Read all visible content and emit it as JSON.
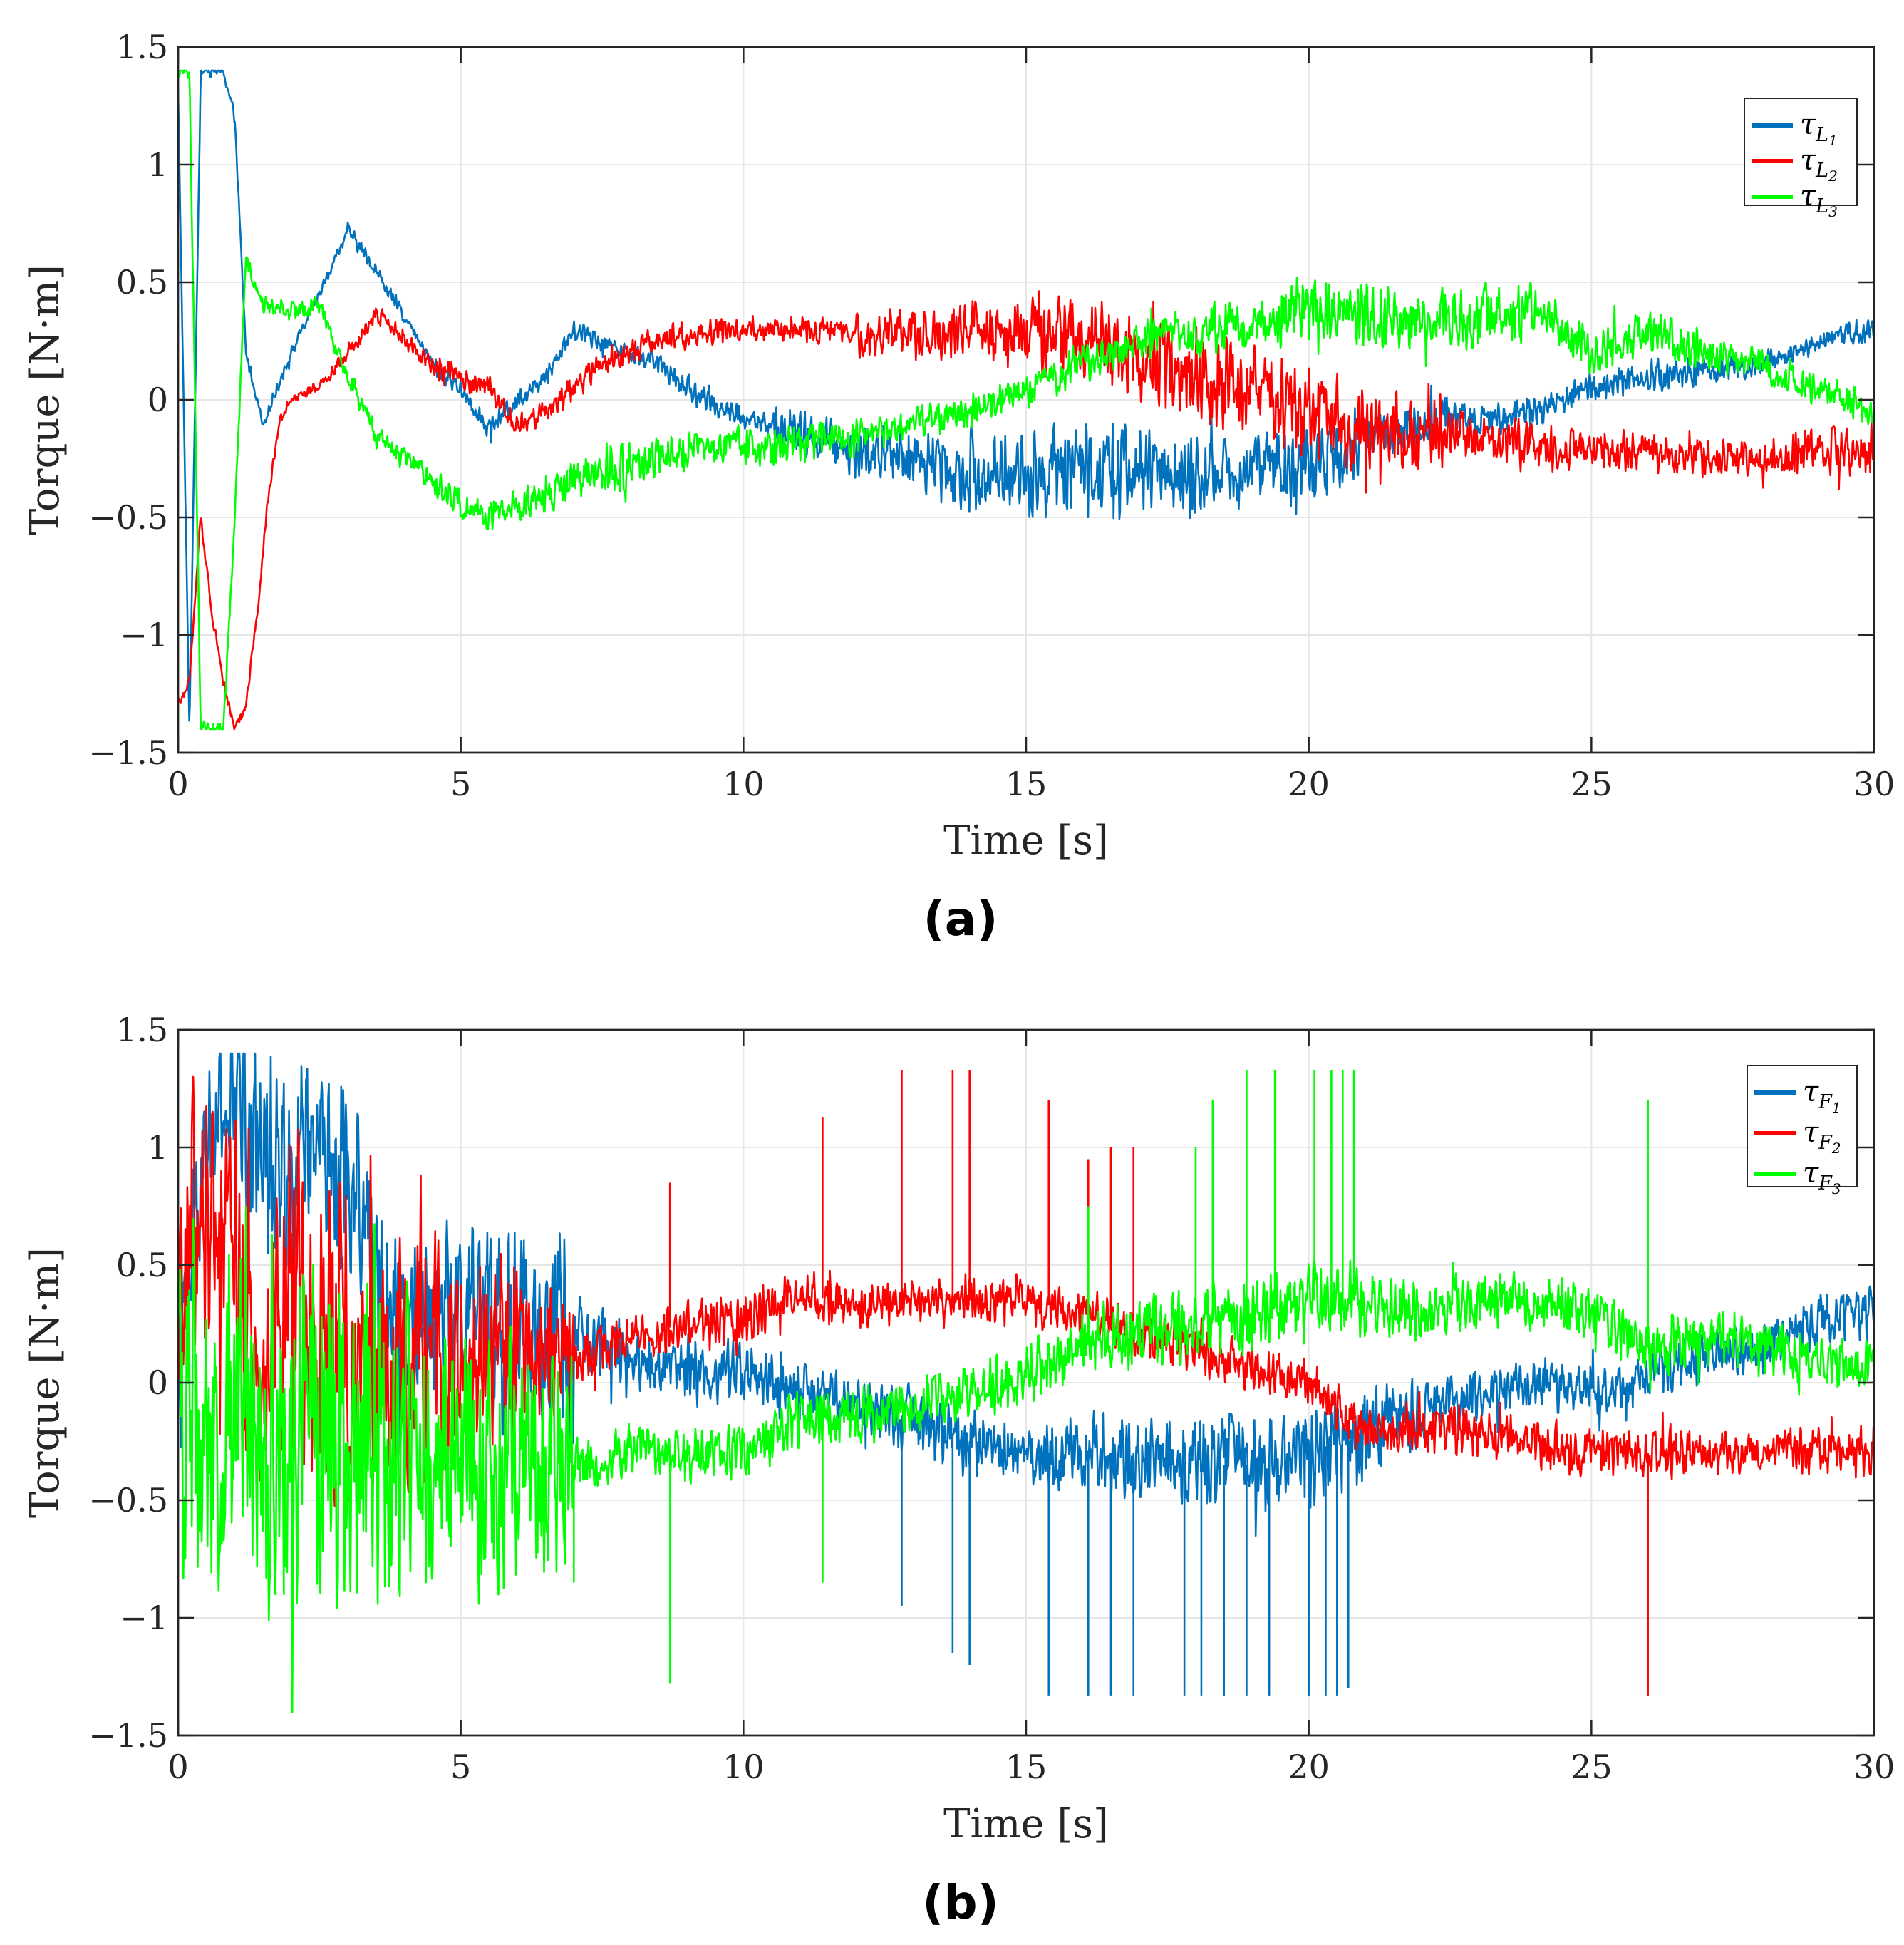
{
  "chart_data": [
    {
      "type": "line",
      "panel_label": "(a)",
      "xlabel": "Time [s]",
      "ylabel": "Torque [N·m]",
      "xlim": [
        0,
        30
      ],
      "ylim": [
        -1.5,
        1.5
      ],
      "x_ticks": [
        0,
        5,
        10,
        15,
        20,
        25,
        30
      ],
      "x_tick_labels": [
        "0",
        "5",
        "10",
        "15",
        "20",
        "25",
        "30"
      ],
      "y_ticks": [
        1.5,
        1,
        0.5,
        0,
        -0.5,
        -1,
        -1.5
      ],
      "y_tick_labels": [
        "1.5",
        "1",
        "0.5",
        "0",
        "−0.5",
        "−1",
        "−1.5"
      ],
      "grid": true,
      "legend_position": "top-right",
      "series": [
        {
          "name": "τL1",
          "symbol": "τ",
          "sub": "L",
          "subsub": "1",
          "color": "#0072BD",
          "noise": [
            0.03,
            0.03,
            0.04,
            0.05,
            0.05,
            0.05,
            0.06,
            0.12,
            0.15,
            0.2,
            0.22,
            0.22,
            0.18,
            0.18,
            0.12,
            0.08,
            0.08,
            0.08,
            0.06,
            0.06
          ],
          "x": [
            0,
            0.2,
            0.4,
            0.6,
            0.8,
            1.0,
            1.2,
            1.5,
            2.0,
            2.5,
            3.0,
            3.5,
            4.0,
            4.5,
            5.0,
            5.5,
            6.0,
            6.5,
            7.0,
            7.5,
            8.0,
            8.5,
            9.0,
            9.5,
            10.0,
            11.0,
            12.0,
            13.0,
            14.0,
            15.0,
            16.0,
            17.0,
            18.0,
            19.0,
            20.0,
            21.0,
            22.0,
            23.0,
            24.0,
            25.0,
            26.0,
            27.0,
            28.0,
            29.0,
            30.0
          ],
          "y": [
            1.3,
            -1.4,
            1.4,
            1.4,
            1.4,
            1.2,
            0.2,
            -0.1,
            0.2,
            0.45,
            0.72,
            0.55,
            0.35,
            0.15,
            0.05,
            -0.12,
            0.0,
            0.1,
            0.3,
            0.25,
            0.2,
            0.15,
            0.05,
            -0.02,
            -0.08,
            -0.15,
            -0.22,
            -0.25,
            -0.3,
            -0.32,
            -0.28,
            -0.3,
            -0.32,
            -0.3,
            -0.28,
            -0.18,
            -0.1,
            -0.08,
            -0.05,
            0.05,
            0.1,
            0.12,
            0.15,
            0.25,
            0.3
          ]
        },
        {
          "name": "τL2",
          "symbol": "τ",
          "sub": "L",
          "subsub": "2",
          "color": "#FF0000",
          "noise": [
            0.03,
            0.03,
            0.05,
            0.06,
            0.06,
            0.07,
            0.06,
            0.06,
            0.12,
            0.16,
            0.2,
            0.22,
            0.22,
            0.22,
            0.2,
            0.12,
            0.1,
            0.1,
            0.1,
            0.12
          ],
          "x": [
            0,
            0.2,
            0.4,
            0.6,
            0.8,
            1.0,
            1.2,
            1.4,
            1.6,
            1.8,
            2.0,
            2.5,
            3.0,
            3.5,
            4.0,
            4.5,
            5.0,
            5.5,
            6.0,
            6.5,
            7.0,
            7.5,
            8.0,
            8.5,
            9.0,
            10.0,
            11.0,
            12.0,
            13.0,
            14.0,
            15.0,
            16.0,
            17.0,
            18.0,
            19.0,
            20.0,
            21.0,
            22.0,
            23.0,
            24.0,
            25.0,
            26.0,
            27.0,
            28.0,
            29.0,
            30.0
          ],
          "y": [
            -1.3,
            -1.2,
            -0.5,
            -0.9,
            -1.2,
            -1.4,
            -1.3,
            -0.9,
            -0.4,
            -0.1,
            0.0,
            0.05,
            0.2,
            0.38,
            0.25,
            0.15,
            0.1,
            0.05,
            -0.12,
            -0.05,
            0.05,
            0.15,
            0.2,
            0.25,
            0.28,
            0.3,
            0.3,
            0.28,
            0.28,
            0.3,
            0.28,
            0.25,
            0.2,
            0.1,
            0.05,
            -0.05,
            -0.15,
            -0.15,
            -0.15,
            -0.2,
            -0.22,
            -0.22,
            -0.25,
            -0.25,
            -0.22,
            -0.2
          ]
        },
        {
          "name": "τL3",
          "symbol": "τ",
          "sub": "L",
          "subsub": "3",
          "color": "#00FF00",
          "noise": [
            0.04,
            0.05,
            0.06,
            0.08,
            0.1,
            0.12,
            0.1,
            0.1,
            0.08,
            0.08,
            0.1,
            0.1,
            0.12,
            0.15,
            0.16,
            0.16,
            0.12,
            0.1,
            0.08,
            0.08
          ],
          "x": [
            0,
            0.2,
            0.4,
            0.6,
            0.8,
            1.0,
            1.2,
            1.5,
            2.0,
            2.5,
            3.0,
            3.5,
            4.0,
            4.5,
            5.0,
            5.5,
            6.0,
            6.5,
            7.0,
            7.5,
            8.0,
            8.5,
            9.0,
            10.0,
            11.0,
            12.0,
            13.0,
            14.0,
            15.0,
            16.0,
            17.0,
            18.0,
            19.0,
            20.0,
            21.0,
            22.0,
            23.0,
            24.0,
            25.0,
            26.0,
            27.0,
            28.0,
            29.0,
            30.0
          ],
          "y": [
            1.4,
            1.4,
            -1.4,
            -1.4,
            -1.4,
            -0.5,
            0.6,
            0.4,
            0.38,
            0.4,
            0.1,
            -0.15,
            -0.25,
            -0.35,
            -0.45,
            -0.5,
            -0.45,
            -0.4,
            -0.35,
            -0.3,
            -0.28,
            -0.25,
            -0.22,
            -0.2,
            -0.18,
            -0.15,
            -0.1,
            -0.05,
            0.05,
            0.15,
            0.25,
            0.3,
            0.32,
            0.4,
            0.35,
            0.35,
            0.35,
            0.38,
            0.2,
            0.3,
            0.2,
            0.15,
            0.05,
            -0.05
          ]
        }
      ]
    },
    {
      "type": "line",
      "panel_label": "(b)",
      "xlabel": "Time [s]",
      "ylabel": "Torque [N·m]",
      "xlim": [
        0,
        30
      ],
      "ylim": [
        -1.5,
        1.5
      ],
      "x_ticks": [
        0,
        5,
        10,
        15,
        20,
        25,
        30
      ],
      "x_tick_labels": [
        "0",
        "5",
        "10",
        "15",
        "20",
        "25",
        "30"
      ],
      "y_ticks": [
        1.5,
        1,
        0.5,
        0,
        -0.5,
        -1,
        -1.5
      ],
      "y_tick_labels": [
        "1.5",
        "1",
        "0.5",
        "0",
        "−0.5",
        "−1",
        "−1.5"
      ],
      "grid": true,
      "legend_position": "top-right",
      "series": [
        {
          "name": "τF1",
          "symbol": "τ",
          "sub": "F",
          "subsub": "1",
          "color": "#0072BD",
          "noise": [
            0.4,
            0.5,
            0.5,
            0.45,
            0.45,
            0.45,
            0.5,
            0.18,
            0.16,
            0.16,
            0.15,
            0.15,
            0.15,
            0.16,
            0.16,
            0.18,
            0.2,
            0.22,
            0.24,
            0.25,
            0.25,
            0.22,
            0.15,
            0.12,
            0.12,
            0.12,
            0.12,
            0.12,
            0.12,
            0.14
          ],
          "spikes": [
            [
              12.8,
              -0.95
            ],
            [
              13.7,
              -1.15
            ],
            [
              14.0,
              -1.2
            ],
            [
              15.4,
              -1.33
            ],
            [
              16.1,
              -1.33
            ],
            [
              16.5,
              -1.33
            ],
            [
              16.9,
              -1.33
            ],
            [
              17.8,
              -1.33
            ],
            [
              18.1,
              -1.33
            ],
            [
              18.5,
              -1.33
            ],
            [
              18.9,
              -1.33
            ],
            [
              19.3,
              -1.33
            ],
            [
              20.0,
              -1.33
            ],
            [
              20.3,
              -1.33
            ],
            [
              20.5,
              -1.33
            ],
            [
              20.7,
              -1.3
            ]
          ],
          "x": [
            0,
            0.5,
            1.0,
            1.5,
            2.0,
            2.5,
            3.0,
            3.5,
            4.0,
            5.0,
            6.0,
            7.0,
            8.0,
            9.0,
            10.0,
            11.0,
            12.0,
            13.0,
            14.0,
            15.0,
            16.0,
            17.0,
            18.0,
            19.0,
            20.0,
            21.0,
            22.0,
            23.0,
            24.0,
            25.0,
            26.0,
            27.0,
            28.0,
            29.0,
            30.0
          ],
          "y": [
            0.0,
            1.0,
            1.2,
            1.0,
            0.9,
            1.0,
            0.9,
            0.5,
            0.3,
            0.3,
            0.2,
            0.2,
            0.1,
            0.05,
            0.05,
            -0.05,
            -0.1,
            -0.15,
            -0.25,
            -0.3,
            -0.3,
            -0.3,
            -0.35,
            -0.35,
            -0.3,
            -0.2,
            -0.1,
            -0.05,
            0.0,
            -0.05,
            0.05,
            0.1,
            0.15,
            0.25,
            0.3
          ]
        },
        {
          "name": "τF2",
          "symbol": "τ",
          "sub": "F",
          "subsub": "2",
          "color": "#FF0000",
          "noise": [
            0.7,
            0.8,
            0.8,
            0.7,
            0.6,
            0.5,
            0.3,
            0.12,
            0.12,
            0.12,
            0.12,
            0.12,
            0.12,
            0.12,
            0.12,
            0.12,
            0.12,
            0.12,
            0.12,
            0.12,
            0.12,
            0.12,
            0.12,
            0.12,
            0.12,
            0.12,
            0.12,
            0.12,
            0.12,
            0.12
          ],
          "spikes": [
            [
              8.7,
              0.85
            ],
            [
              11.4,
              1.13
            ],
            [
              12.8,
              1.33
            ],
            [
              13.7,
              1.33
            ],
            [
              14.0,
              1.33
            ],
            [
              15.4,
              1.2
            ],
            [
              16.1,
              0.95
            ],
            [
              16.5,
              1.0
            ],
            [
              16.9,
              1.0
            ],
            [
              26.0,
              -1.33
            ]
          ],
          "x": [
            0,
            0.5,
            1.0,
            1.5,
            2.0,
            2.5,
            3.0,
            3.5,
            4.0,
            5.0,
            6.0,
            7.0,
            8.0,
            9.0,
            10.0,
            11.0,
            12.0,
            13.0,
            14.0,
            15.0,
            16.0,
            17.0,
            18.0,
            19.0,
            20.0,
            21.0,
            22.0,
            23.0,
            24.0,
            25.0,
            26.0,
            27.0,
            28.0,
            29.0,
            30.0
          ],
          "y": [
            0.5,
            0.8,
            0.6,
            0.0,
            0.4,
            0.2,
            0.1,
            0.15,
            0.05,
            0.1,
            0.15,
            0.1,
            0.2,
            0.25,
            0.25,
            0.4,
            0.3,
            0.35,
            0.35,
            0.35,
            0.3,
            0.2,
            0.15,
            0.05,
            0.0,
            -0.2,
            -0.2,
            -0.2,
            -0.25,
            -0.3,
            -0.3,
            -0.3,
            -0.3,
            -0.3,
            -0.3
          ]
        },
        {
          "name": "τF3",
          "symbol": "τ",
          "sub": "F",
          "subsub": "3",
          "color": "#00FF00",
          "noise": [
            0.9,
            0.9,
            0.85,
            0.8,
            0.75,
            0.7,
            0.55,
            0.14,
            0.14,
            0.14,
            0.14,
            0.14,
            0.14,
            0.14,
            0.16,
            0.18,
            0.18,
            0.2,
            0.2,
            0.2,
            0.18,
            0.16,
            0.14,
            0.14,
            0.14,
            0.14,
            0.14,
            0.14,
            0.14,
            0.14
          ],
          "spikes": [
            [
              7.0,
              -0.85
            ],
            [
              8.7,
              -1.28
            ],
            [
              11.4,
              -0.85
            ],
            [
              16.1,
              0.75
            ],
            [
              18.0,
              1.0
            ],
            [
              18.3,
              1.2
            ],
            [
              18.9,
              1.33
            ],
            [
              19.4,
              1.33
            ],
            [
              20.1,
              1.33
            ],
            [
              20.4,
              1.33
            ],
            [
              20.6,
              1.33
            ],
            [
              20.8,
              1.33
            ],
            [
              26.0,
              1.2
            ]
          ],
          "x": [
            0,
            0.5,
            1.0,
            1.5,
            2.0,
            2.5,
            3.0,
            3.5,
            4.0,
            5.0,
            6.0,
            7.0,
            8.0,
            9.0,
            10.0,
            11.0,
            12.0,
            13.0,
            14.0,
            15.0,
            16.0,
            17.0,
            18.0,
            19.0,
            20.0,
            21.0,
            22.0,
            23.0,
            24.0,
            25.0,
            26.0,
            27.0,
            28.0,
            29.0,
            30.0
          ],
          "y": [
            0.0,
            -0.2,
            0.0,
            -0.3,
            -0.1,
            -0.3,
            -0.2,
            -0.3,
            -0.25,
            -0.3,
            -0.35,
            -0.35,
            -0.3,
            -0.3,
            -0.3,
            -0.15,
            -0.15,
            -0.1,
            -0.05,
            0.05,
            0.15,
            0.25,
            0.25,
            0.3,
            0.35,
            0.35,
            0.3,
            0.35,
            0.35,
            0.3,
            0.15,
            0.2,
            0.15,
            0.1,
            0.05
          ]
        }
      ]
    }
  ]
}
